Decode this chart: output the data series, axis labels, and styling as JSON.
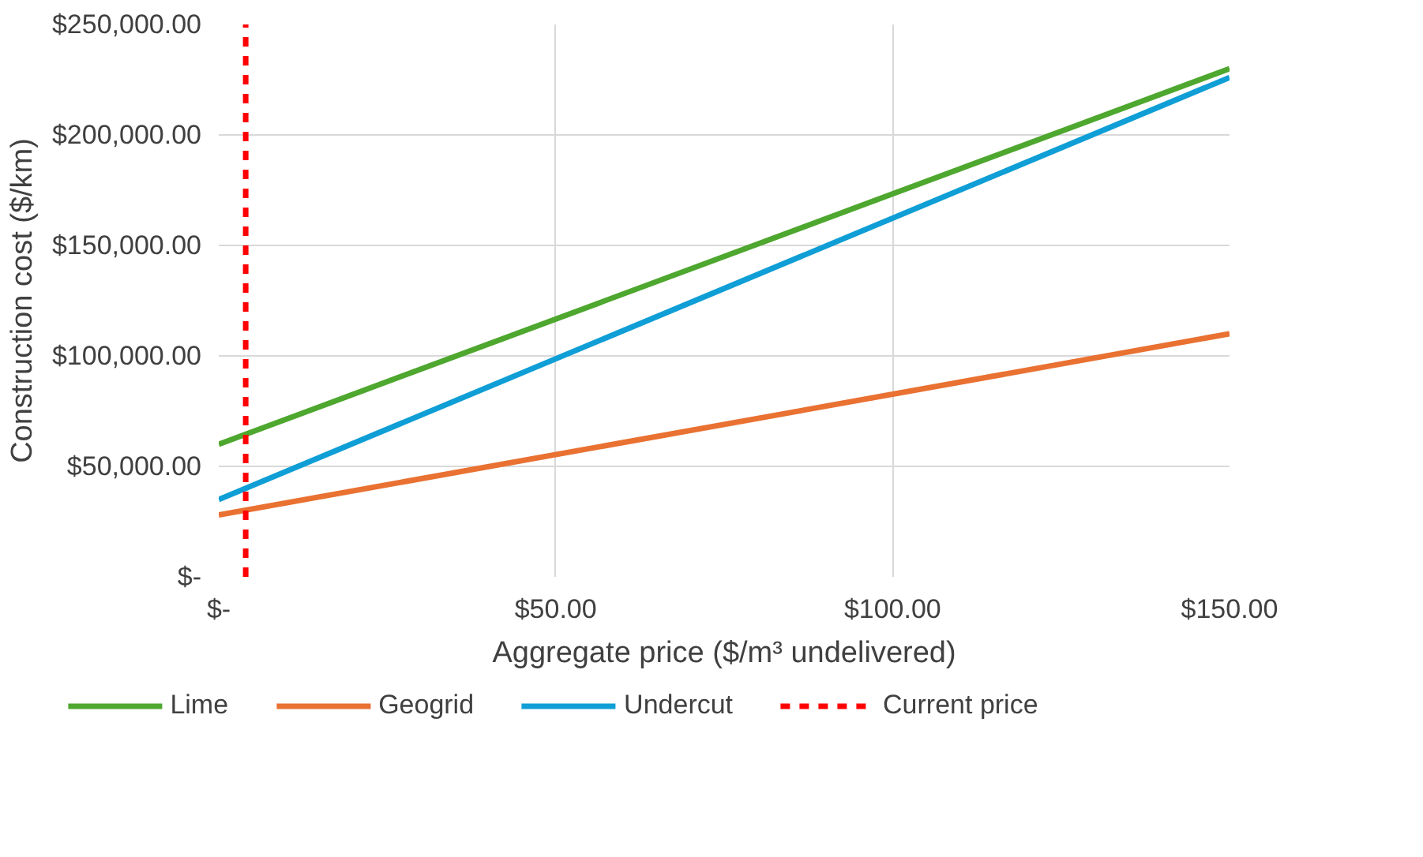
{
  "chart_data": {
    "type": "line",
    "xlabel": "Aggregate price ($/m³ undelivered)",
    "ylabel": "Construction cost ($/km)",
    "x": [
      0,
      150
    ],
    "series": [
      {
        "name": "Lime",
        "color": "#4ea72e",
        "values": [
          60000,
          230000
        ]
      },
      {
        "name": "Geogrid",
        "color": "#e97132",
        "values": [
          28000,
          110000
        ]
      },
      {
        "name": "Undercut",
        "color": "#0f9ed5",
        "values": [
          35000,
          226000
        ]
      }
    ],
    "xlim": [
      0,
      150
    ],
    "ylim": [
      0,
      250000
    ],
    "xticks": [
      {
        "value": 0,
        "label": "$-"
      },
      {
        "value": 50,
        "label": "$50.00"
      },
      {
        "value": 100,
        "label": "$100.00"
      },
      {
        "value": 150,
        "label": "$150.00"
      }
    ],
    "yticks": [
      {
        "value": 0,
        "label": "$-"
      },
      {
        "value": 50000,
        "label": "$50,000.00"
      },
      {
        "value": 100000,
        "label": "$100,000.00"
      },
      {
        "value": 150000,
        "label": "$150,000.00"
      },
      {
        "value": 200000,
        "label": "$200,000.00"
      },
      {
        "value": 250000,
        "label": "$250,000.00"
      }
    ],
    "ref_lines": [
      {
        "axis": "x",
        "value": 4,
        "label": "Current price",
        "color": "#ff0000",
        "line_style": "dashed"
      }
    ],
    "grid": true,
    "legend": "bottom",
    "line_style": "solid"
  }
}
